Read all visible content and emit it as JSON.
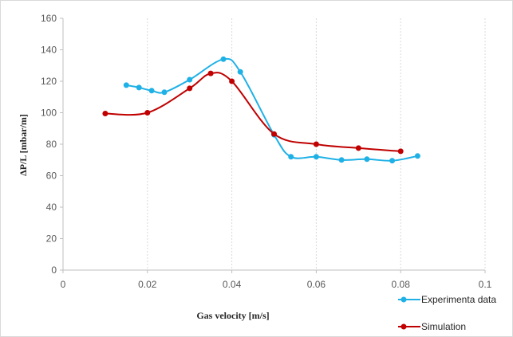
{
  "chart_data": {
    "type": "line",
    "title": "",
    "xlabel": "Gas velocity [m/s]",
    "ylabel": "ΔP/L [mbar/m]",
    "xlim": [
      0,
      0.1
    ],
    "ylim": [
      0,
      160
    ],
    "x_ticks": [
      0,
      0.02,
      0.04,
      0.06,
      0.08,
      0.1
    ],
    "y_ticks": [
      0,
      20,
      40,
      60,
      80,
      100,
      120,
      140,
      160
    ],
    "x_tick_labels": [
      "0",
      "0.02",
      "0.04",
      "0.06",
      "0.08",
      "0.1"
    ],
    "y_tick_labels": [
      "0",
      "20",
      "40",
      "60",
      "80",
      "100",
      "120",
      "140",
      "160"
    ],
    "grid": {
      "vertical": true,
      "horizontal": false
    },
    "legend_position": "bottom-right",
    "smooth": true,
    "series": [
      {
        "name": "Experimenta data",
        "color": "#1fb1e6",
        "marker": "circle",
        "x": [
          0.015,
          0.018,
          0.021,
          0.024,
          0.03,
          0.038,
          0.042,
          0.05,
          0.054,
          0.06,
          0.066,
          0.072,
          0.078,
          0.084
        ],
        "y": [
          117.5,
          116,
          114,
          113,
          121,
          134,
          126,
          86,
          72,
          72,
          70,
          70.5,
          69.5,
          72.5
        ]
      },
      {
        "name": "Simulation",
        "color": "#c00000",
        "marker": "circle",
        "x": [
          0.01,
          0.02,
          0.03,
          0.035,
          0.04,
          0.05,
          0.06,
          0.07,
          0.08
        ],
        "y": [
          99.5,
          100,
          115.5,
          125,
          120,
          86.5,
          80,
          77.5,
          75.5
        ]
      }
    ]
  }
}
